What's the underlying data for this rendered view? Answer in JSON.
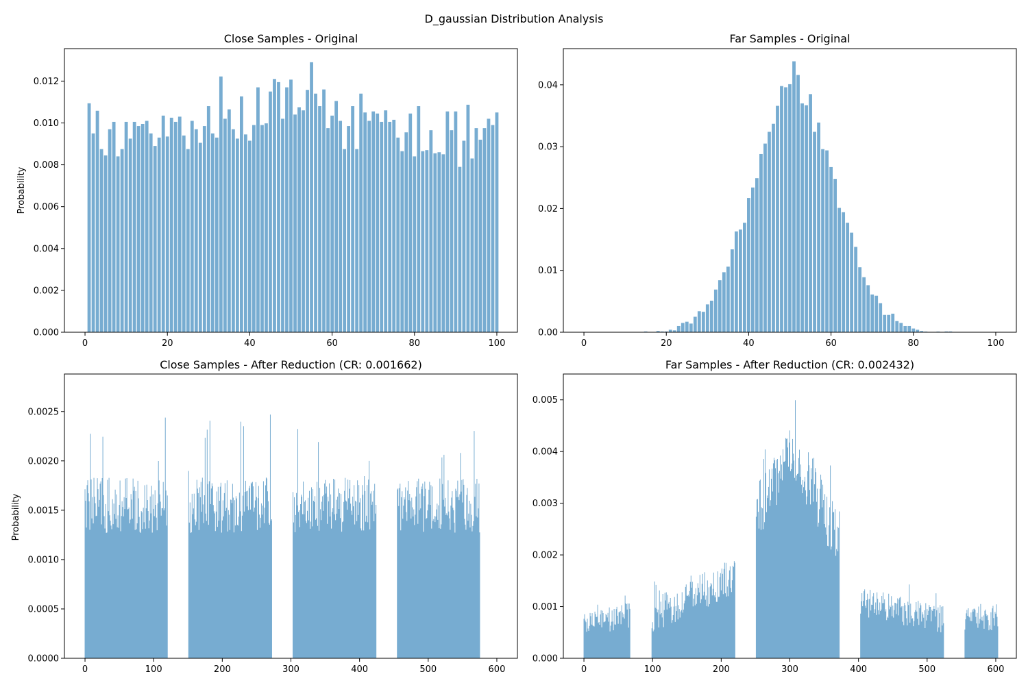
{
  "figure": {
    "suptitle": "D_gaussian Distribution Analysis"
  },
  "colors": {
    "bar": "#77acd1",
    "axis": "#000000",
    "background": "#ffffff"
  },
  "chart_data": [
    {
      "type": "bar",
      "title": "Close Samples - Original",
      "xlabel": "",
      "ylabel": "Probability",
      "xlim": [
        -5,
        105
      ],
      "ylim": [
        0,
        0.01355
      ],
      "xticks": [
        0,
        20,
        40,
        60,
        80,
        100
      ],
      "yticks": [
        0.0,
        0.002,
        0.004,
        0.006,
        0.008,
        0.01,
        0.012
      ],
      "ytick_decimals": 3,
      "bar_width": 0.8,
      "grid": false,
      "x_start": 1,
      "x_step": 1,
      "values": [
        0.01094,
        0.0095,
        0.01058,
        0.00875,
        0.00845,
        0.0097,
        0.01005,
        0.0084,
        0.00875,
        0.01005,
        0.00925,
        0.01005,
        0.00985,
        0.00995,
        0.0101,
        0.0095,
        0.0089,
        0.0093,
        0.01035,
        0.00935,
        0.01025,
        0.01005,
        0.0103,
        0.0094,
        0.00875,
        0.0101,
        0.0097,
        0.00905,
        0.00985,
        0.0108,
        0.0095,
        0.0093,
        0.01222,
        0.0102,
        0.01065,
        0.0097,
        0.00925,
        0.01127,
        0.00945,
        0.00915,
        0.0099,
        0.0117,
        0.0099,
        0.00998,
        0.0115,
        0.0121,
        0.01195,
        0.0102,
        0.0117,
        0.01207,
        0.0104,
        0.01075,
        0.0106,
        0.01158,
        0.0129,
        0.0114,
        0.0108,
        0.0116,
        0.00975,
        0.01035,
        0.01105,
        0.0101,
        0.00875,
        0.00985,
        0.0108,
        0.00875,
        0.0114,
        0.0105,
        0.0101,
        0.01055,
        0.01045,
        0.01005,
        0.0106,
        0.01005,
        0.01015,
        0.0093,
        0.00865,
        0.00955,
        0.01045,
        0.0084,
        0.0108,
        0.00865,
        0.0087,
        0.00965,
        0.00855,
        0.0086,
        0.0085,
        0.01055,
        0.00965,
        0.01055,
        0.0079,
        0.00915,
        0.01087,
        0.0083,
        0.00975,
        0.0092,
        0.00975,
        0.0102,
        0.0099,
        0.0105
      ]
    },
    {
      "type": "bar",
      "title": "Far Samples - Original",
      "xlabel": "",
      "ylabel": "",
      "xlim": [
        -5,
        105
      ],
      "ylim": [
        0,
        0.04585
      ],
      "xticks": [
        0,
        20,
        40,
        60,
        80,
        100
      ],
      "yticks": [
        0.0,
        0.01,
        0.02,
        0.03,
        0.04
      ],
      "ytick_decimals": 2,
      "bar_width": 0.8,
      "grid": false,
      "x_start": 1,
      "x_step": 1,
      "values": [
        0,
        0,
        0,
        0,
        0,
        0,
        0,
        0,
        0,
        0,
        0,
        0,
        0,
        0,
        0.00012,
        0,
        0,
        0.0002,
        0.00012,
        0.00012,
        0.0004,
        0.0003,
        0.001,
        0.0015,
        0.0017,
        0.0014,
        0.0025,
        0.0034,
        0.0033,
        0.0045,
        0.0051,
        0.0069,
        0.0084,
        0.0097,
        0.0106,
        0.0134,
        0.0163,
        0.0166,
        0.0177,
        0.0217,
        0.0234,
        0.0249,
        0.0288,
        0.0305,
        0.0324,
        0.0337,
        0.0366,
        0.0398,
        0.0396,
        0.0401,
        0.0438,
        0.0416,
        0.037,
        0.0367,
        0.0385,
        0.0324,
        0.0339,
        0.0296,
        0.0294,
        0.0267,
        0.0248,
        0.0201,
        0.0194,
        0.0177,
        0.0161,
        0.0138,
        0.0105,
        0.0089,
        0.0076,
        0.0061,
        0.0059,
        0.0047,
        0.0028,
        0.0028,
        0.003,
        0.0018,
        0.0015,
        0.001,
        0.001,
        0.0006,
        0.0004,
        0.0002,
        0.0001,
        0,
        0,
        0.0001,
        0,
        0.00012,
        0.00012,
        0,
        0,
        0,
        0,
        0,
        0,
        0,
        0,
        0,
        0,
        0
      ]
    },
    {
      "type": "bar",
      "title": "Close Samples - After Reduction (CR: 0.001662)",
      "xlabel": "",
      "ylabel": "Probability",
      "xlim": [
        -30,
        630
      ],
      "ylim": [
        0,
        0.00288
      ],
      "xticks": [
        0,
        100,
        200,
        300,
        400,
        500,
        600
      ],
      "yticks": [
        0.0,
        0.0005,
        0.001,
        0.0015,
        0.002,
        0.0025
      ],
      "ytick_decimals": 4,
      "bar_width": 1.0,
      "grid": false,
      "segments": [
        {
          "x_start": 0,
          "x_end": 120,
          "base": 0.00155,
          "spread": 0.00028,
          "spike": 0.00095,
          "min": 0.00096
        },
        {
          "x_start": 151,
          "x_end": 272,
          "base": 0.00155,
          "spread": 0.00028,
          "spike": 0.001,
          "min": 0.0011
        },
        {
          "x_start": 303,
          "x_end": 424,
          "base": 0.00155,
          "spread": 0.00028,
          "spike": 0.00095,
          "min": 0.00083
        },
        {
          "x_start": 455,
          "x_end": 575,
          "base": 0.00155,
          "spread": 0.00028,
          "spike": 0.0008,
          "min": 0.00089
        }
      ]
    },
    {
      "type": "bar",
      "title": "Far Samples - After Reduction (CR: 0.002432)",
      "xlabel": "",
      "ylabel": "",
      "xlim": [
        -30,
        630
      ],
      "ylim": [
        0,
        0.0055
      ],
      "xticks": [
        0,
        100,
        200,
        300,
        400,
        500,
        600
      ],
      "yticks": [
        0.0,
        0.001,
        0.002,
        0.003,
        0.004,
        0.005
      ],
      "ytick_decimals": 3,
      "bar_width": 1.0,
      "grid": false,
      "segments": [
        {
          "x_start": 0,
          "x_end": 67,
          "base_start": 0.0006,
          "base_end": 0.00085,
          "spread": 0.00025,
          "spike": 0.00045,
          "min": 0.00028
        },
        {
          "x_start": 99,
          "x_end": 220,
          "base_start": 0.0008,
          "base_end": 0.0016,
          "spread": 0.00035,
          "spike": 0.0007,
          "min": 0.0005
        },
        {
          "x_start": 251,
          "x_end": 372,
          "base_start": 0.0028,
          "base_peak": 0.004,
          "base_end": 0.0023,
          "spread": 0.0006,
          "spike": 0.0012,
          "min": 0.0018
        },
        {
          "x_start": 403,
          "x_end": 524,
          "base_start": 0.0011,
          "base_end": 0.00075,
          "spread": 0.00028,
          "spike": 0.00055,
          "min": 0.0005
        },
        {
          "x_start": 555,
          "x_end": 603,
          "base_start": 0.00075,
          "base_end": 0.00072,
          "spread": 0.00025,
          "spike": 0.0004,
          "min": 0.00045
        }
      ]
    }
  ]
}
